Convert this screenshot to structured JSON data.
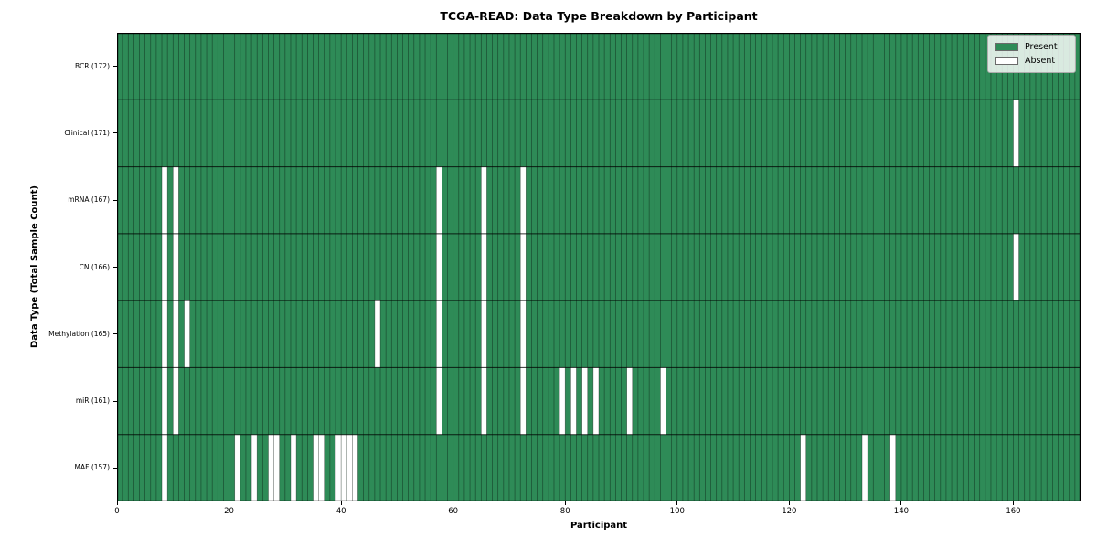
{
  "chart_data": {
    "type": "heatmap",
    "title": "TCGA-READ: Data Type Breakdown by Participant",
    "xlabel": "Participant",
    "ylabel": "Data Type (Total Sample Count)",
    "legend_position": "upper right",
    "x_ticks": [
      0,
      20,
      40,
      60,
      80,
      100,
      120,
      140,
      160
    ],
    "x_range": [
      0,
      172
    ],
    "n_participants": 172,
    "cell_states": [
      "Present",
      "Absent"
    ],
    "colors": {
      "present": "#2e8b57",
      "absent": "#ffffff"
    },
    "legend": [
      {
        "label": "Present",
        "color": "#2e8b57"
      },
      {
        "label": "Absent",
        "color": "#ffffff"
      }
    ],
    "rows": [
      {
        "label": "BCR (172)",
        "data_type": "BCR",
        "total_sample_count": 172,
        "absent_participants": []
      },
      {
        "label": "Clinical (171)",
        "data_type": "Clinical",
        "total_sample_count": 171,
        "absent_participants": [
          160
        ]
      },
      {
        "label": "mRNA (167)",
        "data_type": "mRNA",
        "total_sample_count": 167,
        "absent_participants": [
          8,
          10,
          57,
          65,
          72
        ]
      },
      {
        "label": "CN (166)",
        "data_type": "CN",
        "total_sample_count": 166,
        "absent_participants": [
          8,
          10,
          57,
          65,
          72,
          160
        ]
      },
      {
        "label": "Methylation (165)",
        "data_type": "Methylation",
        "total_sample_count": 165,
        "absent_participants": [
          8,
          10,
          12,
          46,
          57,
          65,
          72
        ]
      },
      {
        "label": "miR (161)",
        "data_type": "miR",
        "total_sample_count": 161,
        "absent_participants": [
          8,
          10,
          57,
          65,
          72,
          79,
          81,
          83,
          85,
          91,
          97
        ]
      },
      {
        "label": "MAF (157)",
        "data_type": "MAF",
        "total_sample_count": 157,
        "absent_participants": [
          8,
          21,
          24,
          27,
          28,
          31,
          35,
          36,
          39,
          40,
          41,
          42,
          122,
          133,
          138
        ]
      }
    ]
  }
}
